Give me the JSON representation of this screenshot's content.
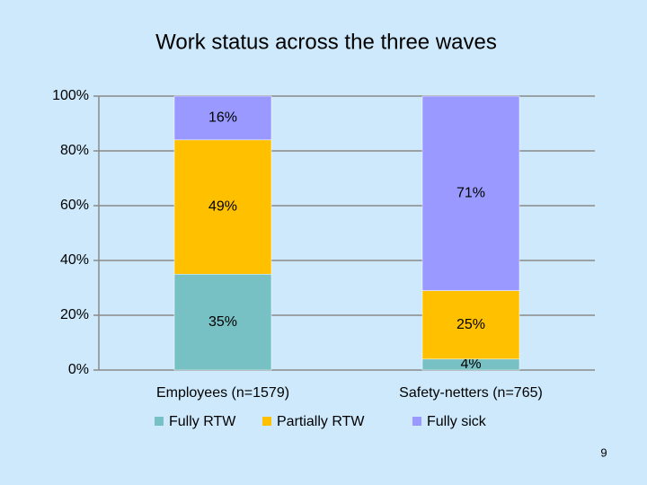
{
  "chart_data": {
    "type": "stacked_bar",
    "title": "Work status across the three waves",
    "categories": [
      "Employees (n=1579)",
      "Safety-netters (n=765)"
    ],
    "series": [
      {
        "name": "Fully RTW",
        "color": "#77c1c4",
        "values": [
          35,
          4
        ],
        "value_labels": [
          "35%",
          "4%"
        ]
      },
      {
        "name": "Partially RTW",
        "color": "#ffc000",
        "values": [
          49,
          25
        ],
        "value_labels": [
          "49%",
          "25%"
        ]
      },
      {
        "name": "Fully sick",
        "color": "#9999ff",
        "values": [
          16,
          71
        ],
        "value_labels": [
          "16%",
          "71%"
        ]
      }
    ],
    "ylim": [
      0,
      100
    ],
    "yticks": [
      {
        "value": 0,
        "label": "0%"
      },
      {
        "value": 20,
        "label": "20%"
      },
      {
        "value": 40,
        "label": "40%"
      },
      {
        "value": 60,
        "label": "60%"
      },
      {
        "value": 80,
        "label": "80%"
      },
      {
        "value": 100,
        "label": "100%"
      }
    ],
    "grid": true,
    "legend": "bottom"
  },
  "slide_number": "9"
}
